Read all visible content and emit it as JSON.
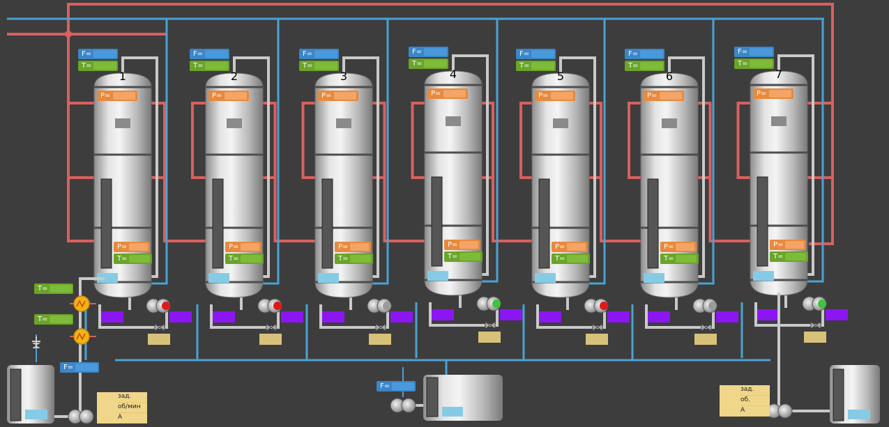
{
  "columns": [
    {
      "number": "1",
      "pump_status": "red"
    },
    {
      "number": "2",
      "pump_status": "red"
    },
    {
      "number": "3",
      "pump_status": "off"
    },
    {
      "number": "4",
      "pump_status": "green"
    },
    {
      "number": "5",
      "pump_status": "red"
    },
    {
      "number": "6",
      "pump_status": "off"
    },
    {
      "number": "7",
      "pump_status": "green"
    }
  ],
  "labels": {
    "flow": "F=",
    "temp": "T=",
    "pressure": "P="
  },
  "left_controller": {
    "setpoint": "зад.",
    "speed": "об/мин",
    "current": "А"
  },
  "right_controller": {
    "setpoint": "зад.",
    "speed": "об.",
    "current": "А"
  },
  "colors": {
    "background": "#3d3d3d",
    "hot_pipe": "#d9605e",
    "cold_pipe": "#4aa3d4",
    "vessel": "#c9c9c9",
    "flow_label": "#3b86c8",
    "temp_label": "#6aa42a",
    "pressure_label": "#e8893c",
    "valve_box": "#8b16f2",
    "pump_running": "#3ec43e",
    "pump_alarm": "#e01818",
    "heater": "#f2b315",
    "controller_panel": "#f0d68a"
  }
}
